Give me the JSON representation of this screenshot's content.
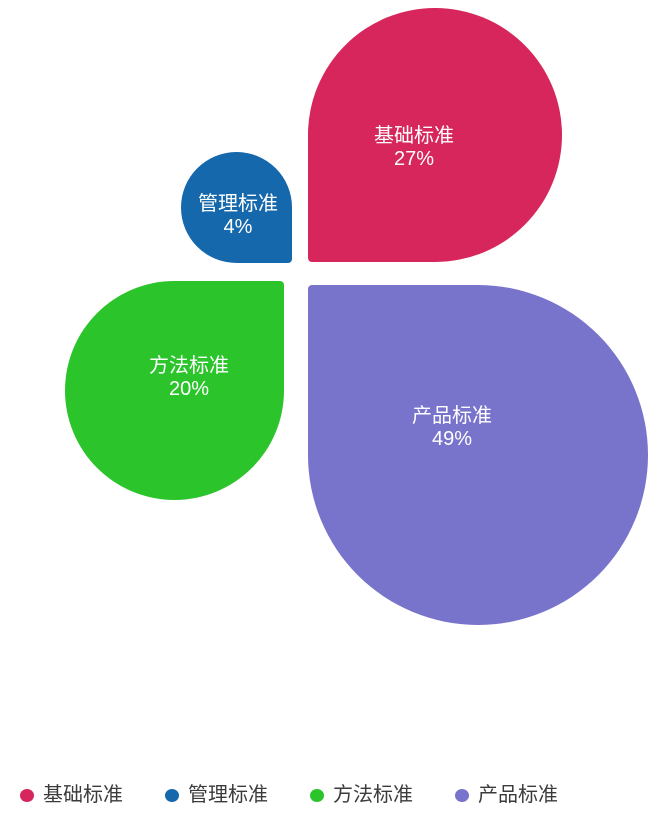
{
  "chart_data": {
    "type": "pie",
    "variant": "petal-clover",
    "title": "",
    "categories": [
      "基础标准",
      "管理标准",
      "方法标准",
      "产品标准"
    ],
    "values": [
      27,
      4,
      20,
      49
    ],
    "unit": "%",
    "colors": [
      "#D7265C",
      "#1668AC",
      "#2BC42B",
      "#7873CB"
    ],
    "grid": false,
    "legend_position": "bottom-left",
    "label_style": "name + percent inside each petal, white text"
  },
  "petals": [
    {
      "name": "基础标准",
      "pct": "27%",
      "color": "#D7265C"
    },
    {
      "name": "管理标准",
      "pct": "4%",
      "color": "#1668AC"
    },
    {
      "name": "方法标准",
      "pct": "20%",
      "color": "#2BC42B"
    },
    {
      "name": "产品标准",
      "pct": "49%",
      "color": "#7873CB"
    }
  ],
  "legend": {
    "items": [
      {
        "label": "基础标准",
        "color": "#D7265C"
      },
      {
        "label": "管理标准",
        "color": "#1668AC"
      },
      {
        "label": "方法标准",
        "color": "#2BC42B"
      },
      {
        "label": "产品标准",
        "color": "#7873CB"
      }
    ]
  }
}
